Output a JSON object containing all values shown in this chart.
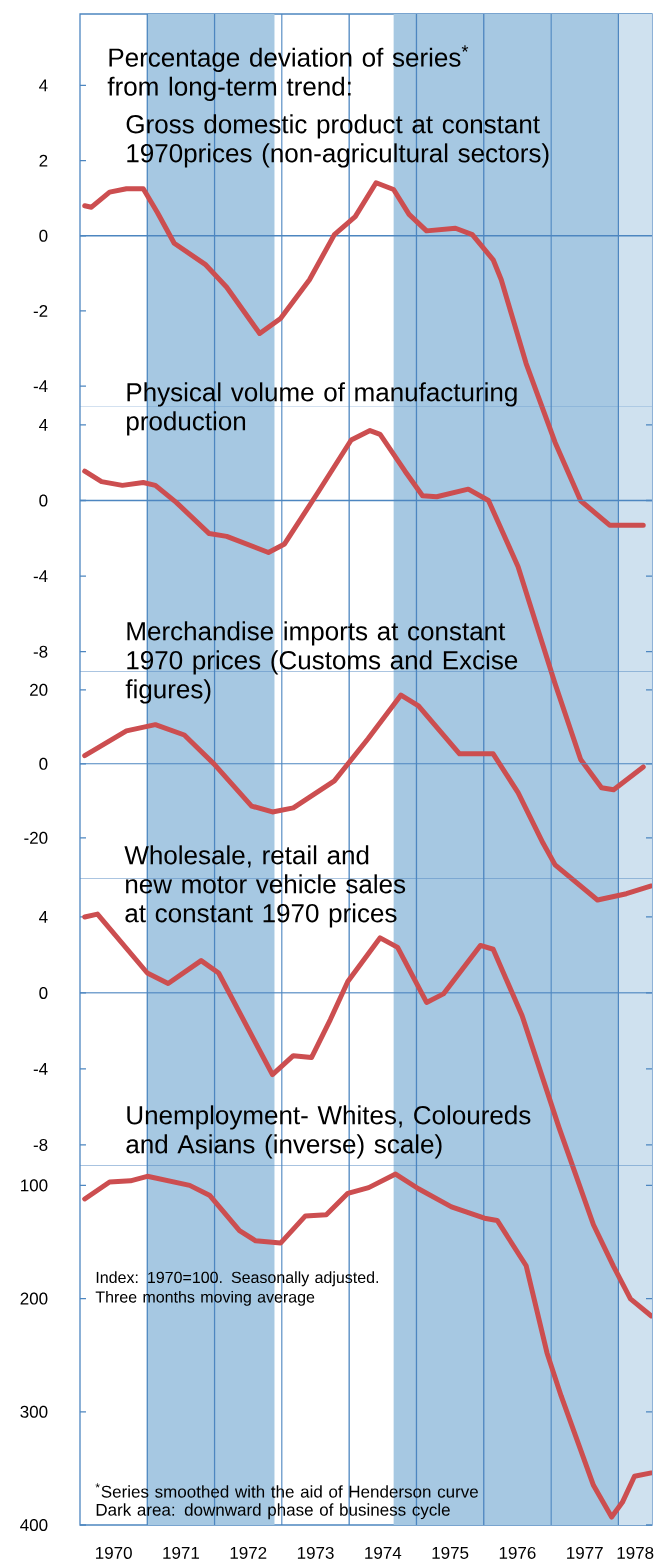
{
  "chart_data": [
    {
      "type": "line",
      "title": "Percentage deviation of series$^{*}$ from long-term trend:",
      "subtitle": "Gross domestic product at constant 1970prices (non-agricultural sectors)",
      "xlim": [
        1970,
        1978.5
      ],
      "ylim": [
        -34.3,
        5.9
      ],
      "yticks": [
        -4,
        -2,
        0,
        2,
        4
      ],
      "tick_labels": "y",
      "series": [
        {
          "color": "#cc4e50",
          "x": [
            1970.07,
            1970.17,
            1970.44,
            1970.69,
            1970.94,
            1971.15,
            1971.4,
            1971.86,
            1972.18,
            1972.67,
            1972.98,
            1973.41,
            1973.78,
            1974.09,
            1974.4,
            1974.66,
            1974.89,
            1975.15,
            1975.58,
            1975.83,
            1976.14,
            1976.26,
            1976.63,
            1977.06,
            1977.44,
            1977.87,
            1978.37
          ],
          "values": [
            0.8,
            0.76,
            1.16,
            1.25,
            1.25,
            0.62,
            -0.2,
            -0.76,
            -1.37,
            -2.6,
            -2.2,
            -1.17,
            0.03,
            0.51,
            1.41,
            1.23,
            0.57,
            0.13,
            0.2,
            0.03,
            -0.64,
            -1.17,
            -3.4,
            -5.5,
            -7.05,
            -7.7,
            -7.7
          ]
        }
      ],
      "bands": [
        {
          "axis": "x",
          "from": 1971,
          "to": 1972.89,
          "color": "#a6c8e2"
        },
        {
          "axis": "x",
          "from": 1974.66,
          "to": 1978,
          "color": "#a6c8e2"
        },
        {
          "axis": "x",
          "from": 1978,
          "to": 1978.5,
          "color": "#cfe1ef"
        }
      ],
      "ref_lines": [
        {
          "axis": "y",
          "value": 0,
          "color": "#4d86c0"
        },
        {
          "axis": "x",
          "value": 1971,
          "color": "#4d86c0"
        },
        {
          "axis": "x",
          "value": 1972,
          "color": "#4d86c0"
        },
        {
          "axis": "x",
          "value": 1973,
          "color": "#4d86c0"
        },
        {
          "axis": "x",
          "value": 1974,
          "color": "#4d86c0"
        },
        {
          "axis": "x",
          "value": 1975,
          "color": "#4d86c0"
        },
        {
          "axis": "x",
          "value": 1976,
          "color": "#4d86c0"
        },
        {
          "axis": "x",
          "value": 1977,
          "color": "#4d86c0"
        },
        {
          "axis": "x",
          "value": 1978,
          "color": "#4d86c0"
        }
      ]
    },
    {
      "type": "line",
      "title": "Physical volume of manufacturing production",
      "xlim": [
        1970,
        1978.5
      ],
      "ylim": [
        -54.2,
        5.0
      ],
      "yticks": [
        -8,
        -4,
        0,
        4
      ],
      "tick_labels": "y",
      "series": [
        {
          "color": "#cc4e50",
          "x": [
            1970.07,
            1970.32,
            1970.63,
            1970.94,
            1971.12,
            1971.43,
            1971.92,
            1972.18,
            1972.8,
            1973.04,
            1973.54,
            1974.03,
            1974.31,
            1974.46,
            1974.83,
            1975.09,
            1975.3,
            1975.77,
            1976.07,
            1976.51,
            1977.06,
            1977.44,
            1977.75,
            1977.93,
            1978.37
          ],
          "values": [
            1.55,
            1.0,
            0.8,
            0.95,
            0.8,
            -0.1,
            -1.75,
            -1.9,
            -2.75,
            -2.3,
            0.45,
            3.2,
            3.7,
            3.5,
            1.55,
            0.25,
            0.2,
            0.6,
            0.0,
            -3.5,
            -9.7,
            -13.7,
            -15.2,
            -15.3,
            -14.1
          ]
        }
      ],
      "ref_lines": [
        {
          "axis": "y",
          "value": 0,
          "color": "#4d86c0"
        }
      ]
    },
    {
      "type": "line",
      "title": "Merchandise imports at constant 1970 prices (Customs and Excise figures)",
      "xlim": [
        1970,
        1978.5
      ],
      "ylim": [
        -205.7,
        25.1
      ],
      "yticks": [
        -20,
        0,
        20
      ],
      "tick_labels": "y",
      "series": [
        {
          "color": "#cc4e50",
          "x": [
            1970.07,
            1970.69,
            1971.12,
            1971.55,
            1971.99,
            1972.55,
            1972.86,
            1973.17,
            1973.78,
            1974.28,
            1974.77,
            1975.03,
            1975.64,
            1976.14,
            1976.51,
            1976.88,
            1977.06,
            1977.69,
            1978.12,
            1978.49
          ],
          "values": [
            2.2,
            8.9,
            10.6,
            7.8,
            0,
            -11.4,
            -13,
            -11.9,
            -4.6,
            6.8,
            18.6,
            15.7,
            2.7,
            2.7,
            -7.8,
            -21.4,
            -27.3,
            -36.8,
            -35.1,
            -33
          ]
        }
      ],
      "ref_lines": [
        {
          "axis": "y",
          "value": 0,
          "color": "#4d86c0"
        }
      ]
    },
    {
      "type": "line",
      "title": "Wholesale, retail and new motor vehicle sales at constant 1970 prices",
      "xlim": [
        1970,
        1978.5
      ],
      "ylim": [
        -28,
        6.05
      ],
      "yticks": [
        -8,
        -4,
        0,
        4
      ],
      "tick_labels": "y",
      "series": [
        {
          "color": "#cc4e50",
          "x": [
            1970.07,
            1970.26,
            1971.0,
            1971.31,
            1971.8,
            1972.06,
            1972.86,
            1973.17,
            1973.44,
            1973.72,
            1973.98,
            1974.46,
            1974.72,
            1975.15,
            1975.4,
            1975.95,
            1976.14,
            1976.57,
            1977.12,
            1977.63,
            1977.93,
            1978.18,
            1978.49
          ],
          "values": [
            4.0,
            4.15,
            1.05,
            0.5,
            1.7,
            1.05,
            -4.3,
            -3.3,
            -3.4,
            -1.4,
            0.6,
            2.9,
            2.4,
            -0.5,
            -0.05,
            2.5,
            2.3,
            -1.2,
            -7.1,
            -12.2,
            -14.4,
            -16.1,
            -17.0
          ]
        }
      ],
      "ref_lines": [
        {
          "axis": "y",
          "value": 0,
          "color": "#4d86c0"
        }
      ]
    },
    {
      "type": "line",
      "title": "Unemployment- Whites, Coloureds and Asians (inverse) scale)",
      "xlim": [
        1970,
        1978.5
      ],
      "ylim": [
        400,
        82
      ],
      "yticks": [
        100,
        200,
        300,
        400
      ],
      "xticks": [
        {
          "value": 1970.5,
          "label": "1970"
        },
        {
          "value": 1971.5,
          "label": "1971"
        },
        {
          "value": 1972.5,
          "label": "1972"
        },
        {
          "value": 1973.5,
          "label": "1973"
        },
        {
          "value": 1974.5,
          "label": "1974"
        },
        {
          "value": 1975.5,
          "label": "1975"
        },
        {
          "value": 1976.5,
          "label": "1976"
        },
        {
          "value": 1977.5,
          "label": "1977"
        },
        {
          "value": 1978.25,
          "label": "1978"
        }
      ],
      "series": [
        {
          "color": "#cc4e50",
          "x": [
            1970.07,
            1970.44,
            1970.75,
            1971.0,
            1971.63,
            1971.93,
            1972.37,
            1972.61,
            1972.98,
            1973.35,
            1973.66,
            1973.98,
            1974.29,
            1974.69,
            1975.03,
            1975.52,
            1976.01,
            1976.2,
            1976.63,
            1976.94,
            1977.15,
            1977.63,
            1977.9,
            1978.06,
            1978.24,
            1978.49
          ],
          "values": [
            112,
            97,
            96,
            92,
            100,
            109,
            140,
            149,
            151,
            127,
            126,
            107,
            102,
            90,
            103,
            119,
            129,
            131,
            171,
            248,
            286,
            365,
            393,
            380,
            357,
            354
          ]
        }
      ],
      "annotations": [
        "Index: 1970=100. Seasonally adjusted. Three months moving average",
        "$^{*}$Series smoothed with the aid of Henderson curve",
        "Dark area: downward phase of business cycle"
      ]
    }
  ]
}
